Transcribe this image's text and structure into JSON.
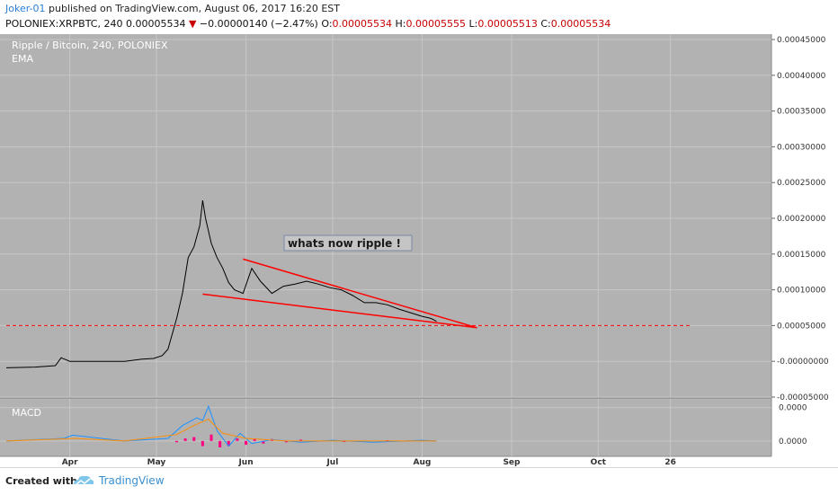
{
  "header": {
    "author": "Joker-01",
    "published_text": " published on TradingView.com, August 06, 2017 16:20 EST",
    "symbol": "POLONIEX:XRPBTC, 240",
    "last": "0.00005534",
    "change_arrow": "▼",
    "change": "−0.00000140 (−2.47%)",
    "open_label": "O:",
    "open": "0.00005534",
    "high_label": "H:",
    "high": "0.00005555",
    "low_label": "L:",
    "low": "0.00005513",
    "close_label": "C:",
    "close": "0.00005534"
  },
  "chart_title": "Ripple / Bitcoin, 240, POLONIEX",
  "indicator_ema": "EMA",
  "indicator_macd": "MACD",
  "annotation_text": "whats now ripple !",
  "footer": {
    "created_with": "Created with",
    "brand": "TradingView",
    "logo_icon": "tradingview-cloud-logo"
  },
  "colors": {
    "background": "#b2b2b2",
    "price_line": "#000000",
    "trendline": "#ff0000",
    "macd_line": "#1e90ff",
    "signal_line": "#ff8c00",
    "histogram": "#ff007f",
    "annotation_bg": "#c5c5c5",
    "annotation_border": "#7a8aa8"
  },
  "chart_data": [
    {
      "type": "line",
      "title": "Ripple / Bitcoin, 240, POLONIEX",
      "series": [
        {
          "name": "XRPBTC",
          "x": [
            "2017-03-10",
            "2017-03-20",
            "2017-03-27",
            "2017-03-29",
            "2017-04-01",
            "2017-04-10",
            "2017-04-20",
            "2017-04-26",
            "2017-04-30",
            "2017-05-03",
            "2017-05-05",
            "2017-05-08",
            "2017-05-10",
            "2017-05-12",
            "2017-05-14",
            "2017-05-16",
            "2017-05-17",
            "2017-05-18",
            "2017-05-20",
            "2017-05-22",
            "2017-05-24",
            "2017-05-26",
            "2017-05-28",
            "2017-05-31",
            "2017-06-03",
            "2017-06-06",
            "2017-06-10",
            "2017-06-14",
            "2017-06-18",
            "2017-06-22",
            "2017-06-26",
            "2017-06-30",
            "2017-07-04",
            "2017-07-08",
            "2017-07-12",
            "2017-07-16",
            "2017-07-20",
            "2017-07-24",
            "2017-07-28",
            "2017-08-01",
            "2017-08-04",
            "2017-08-06"
          ],
          "y": [
            -9e-06,
            -8e-06,
            -6e-06,
            5e-06,
            0.0,
            0.0,
            0.0,
            3e-06,
            4e-06,
            8e-06,
            1.7e-05,
            6e-05,
            9.5e-05,
            0.000145,
            0.00016,
            0.00019,
            0.000225,
            0.0002,
            0.000165,
            0.000145,
            0.00013,
            0.00011,
            0.0001,
            9.5e-05,
            0.00013,
            0.000112,
            9.5e-05,
            0.000105,
            0.000108,
            0.000112,
            0.000108,
            0.000103,
            0.0001,
            9.2e-05,
            8.2e-05,
            8.2e-05,
            7.9e-05,
            7.3e-05,
            6.8e-05,
            6.3e-05,
            6e-05,
            5.6e-05
          ]
        }
      ],
      "trendlines": [
        {
          "from": [
            "2017-05-31",
            0.000143
          ],
          "to": [
            "2017-08-20",
            4.7e-05
          ]
        },
        {
          "from": [
            "2017-05-17",
            9.4e-05
          ],
          "to": [
            "2017-08-20",
            4.7e-05
          ]
        }
      ],
      "horizontal_line": {
        "y": 5e-05,
        "style": "dashed"
      },
      "y_ticks": [
        "0.00045000",
        "0.00040000",
        "0.00035000",
        "0.00030000",
        "0.00025000",
        "0.00020000",
        "0.00015000",
        "0.00010000",
        "0.00005000",
        "-0.00000000",
        "-0.00005000"
      ],
      "ylim": [
        -5e-05,
        0.00045
      ],
      "x_ticks": [
        "Apr",
        "May",
        "Jun",
        "Jul",
        "Aug",
        "Sep",
        "Oct",
        "26"
      ],
      "xlim": [
        "2017-03-10",
        "2017-11-30"
      ],
      "grid": true
    },
    {
      "type": "line",
      "title": "MACD",
      "series": [
        {
          "name": "MACD",
          "x": [
            "2017-03-10",
            "2017-03-30",
            "2017-04-02",
            "2017-04-20",
            "2017-05-05",
            "2017-05-10",
            "2017-05-15",
            "2017-05-17",
            "2017-05-19",
            "2017-05-22",
            "2017-05-26",
            "2017-05-30",
            "2017-06-03",
            "2017-06-10",
            "2017-06-20",
            "2017-07-01",
            "2017-07-15",
            "2017-08-01",
            "2017-08-06"
          ],
          "y": [
            0.0,
            2e-06,
            4.5e-06,
            0.0,
            2e-06,
            1.2e-05,
            1.8e-05,
            1.6e-05,
            2.7e-05,
            8e-06,
            -4e-06,
            6e-06,
            -2e-06,
            1e-06,
            -1e-06,
            5e-07,
            -1e-06,
            5e-07,
            0.0
          ]
        },
        {
          "name": "Signal",
          "x": [
            "2017-03-10",
            "2017-04-03",
            "2017-04-20",
            "2017-05-08",
            "2017-05-14",
            "2017-05-19",
            "2017-05-24",
            "2017-06-01",
            "2017-06-15",
            "2017-07-01",
            "2017-08-06"
          ],
          "y": [
            0.0,
            2e-06,
            0.0,
            5e-06,
            1.2e-05,
            1.7e-05,
            6e-06,
            2e-06,
            0.0,
            0.0,
            0.0
          ]
        }
      ],
      "histogram": {
        "x": [
          "2017-05-08",
          "2017-05-11",
          "2017-05-14",
          "2017-05-17",
          "2017-05-20",
          "2017-05-23",
          "2017-05-26",
          "2017-05-29",
          "2017-06-01",
          "2017-06-04",
          "2017-06-07",
          "2017-06-10",
          "2017-06-15",
          "2017-06-20",
          "2017-07-05",
          "2017-07-20"
        ],
        "y": [
          -1e-06,
          2e-06,
          3e-06,
          -4e-06,
          5e-06,
          -5e-06,
          -4e-06,
          2e-06,
          -3e-06,
          2e-06,
          -2e-06,
          1.5e-06,
          -1e-06,
          1e-06,
          -8e-07,
          6e-07
        ]
      },
      "y_ticks": [
        "0.0000",
        "0.0000"
      ],
      "ylim": [
        -1.2e-05,
        3e-05
      ],
      "grid": true
    }
  ]
}
